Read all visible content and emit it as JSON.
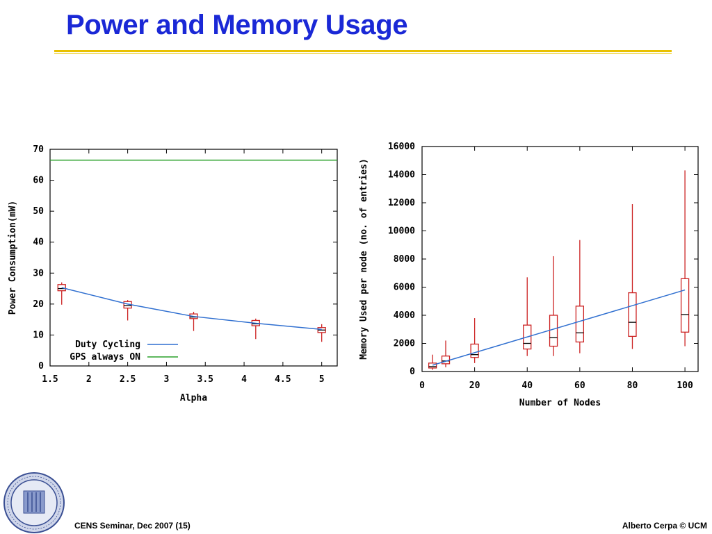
{
  "slide": {
    "title": "Power and Memory Usage",
    "footer_left": "CENS Seminar, Dec 2007 (15)",
    "footer_right": "Alberto Cerpa © UCM",
    "logo_icon": "university-of-california-merced-seal-icon",
    "colors": {
      "title": "#1a28d6",
      "rule": "#e8c000"
    }
  },
  "chart_data": [
    {
      "type": "boxplot",
      "xlabel": "Alpha",
      "ylabel": "Power Consumption(mW)",
      "xlim": [
        1.5,
        5.2
      ],
      "ylim": [
        0,
        70
      ],
      "x_ticks": [
        "1.5",
        "2",
        "2.5",
        "3",
        "3.5",
        "4",
        "4.5",
        "5"
      ],
      "y_ticks": [
        "0",
        "10",
        "20",
        "30",
        "40",
        "50",
        "60",
        "70"
      ],
      "grid": false,
      "legend_position": "bottom-right",
      "series": [
        {
          "name": "Duty Cycling",
          "color": "#2f6fd0",
          "kind": "line",
          "x": [
            1.65,
            2.5,
            3.35,
            4.15,
            5.0
          ],
          "y": [
            25.3,
            20.0,
            16.0,
            13.8,
            11.8
          ]
        },
        {
          "name": "GPS always ON",
          "color": "#2aa02a",
          "kind": "hline",
          "y": 66.5
        }
      ],
      "boxes": [
        {
          "x": 1.65,
          "whisker_low": 19.8,
          "q1": 24.3,
          "median": 25.0,
          "q3": 26.3,
          "whisker_high": 27.0
        },
        {
          "x": 2.5,
          "whisker_low": 14.7,
          "q1": 18.7,
          "median": 19.5,
          "q3": 20.8,
          "whisker_high": 21.3
        },
        {
          "x": 3.35,
          "whisker_low": 11.3,
          "q1": 15.3,
          "median": 15.8,
          "q3": 16.8,
          "whisker_high": 17.5
        },
        {
          "x": 4.15,
          "whisker_low": 8.7,
          "q1": 13.0,
          "median": 13.6,
          "q3": 14.7,
          "whisker_high": 15.3
        },
        {
          "x": 5.0,
          "whisker_low": 7.8,
          "q1": 10.8,
          "median": 11.6,
          "q3": 12.4,
          "whisker_high": 13.5
        }
      ],
      "box_color": "#cc2222"
    },
    {
      "type": "boxplot",
      "xlabel": "Number of Nodes",
      "ylabel": "Memory Used per node (no. of entries)",
      "xlim": [
        0,
        105
      ],
      "ylim": [
        0,
        16000
      ],
      "x_ticks": [
        "0",
        "20",
        "40",
        "60",
        "80",
        "100"
      ],
      "y_ticks": [
        "0",
        "2000",
        "4000",
        "6000",
        "8000",
        "10000",
        "12000",
        "14000",
        "16000"
      ],
      "grid": false,
      "series": [
        {
          "name": "",
          "color": "#2f6fd0",
          "kind": "line",
          "x": [
            4,
            100
          ],
          "y": [
            450,
            5800
          ]
        }
      ],
      "boxes": [
        {
          "x": 4,
          "whisker_low": 120,
          "q1": 250,
          "median": 350,
          "q3": 600,
          "whisker_high": 1200
        },
        {
          "x": 9,
          "whisker_low": 300,
          "q1": 550,
          "median": 750,
          "q3": 1100,
          "whisker_high": 2200
        },
        {
          "x": 20,
          "whisker_low": 600,
          "q1": 1000,
          "median": 1200,
          "q3": 1950,
          "whisker_high": 3800
        },
        {
          "x": 40,
          "whisker_low": 1100,
          "q1": 1600,
          "median": 2000,
          "q3": 3300,
          "whisker_high": 6700
        },
        {
          "x": 50,
          "whisker_low": 1100,
          "q1": 1800,
          "median": 2400,
          "q3": 4000,
          "whisker_high": 8200
        },
        {
          "x": 60,
          "whisker_low": 1300,
          "q1": 2100,
          "median": 2750,
          "q3": 4650,
          "whisker_high": 9350
        },
        {
          "x": 80,
          "whisker_low": 1600,
          "q1": 2500,
          "median": 3500,
          "q3": 5600,
          "whisker_high": 11900
        },
        {
          "x": 100,
          "whisker_low": 1800,
          "q1": 2800,
          "median": 4050,
          "q3": 6600,
          "whisker_high": 14300
        }
      ],
      "box_color": "#cc2222"
    }
  ]
}
